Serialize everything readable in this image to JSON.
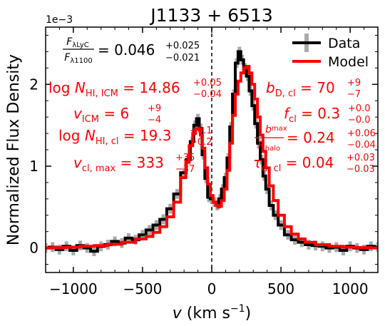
{
  "chart_data": {
    "type": "line",
    "title": "J1133 + 6513",
    "xlabel": "v (km s⁻¹)",
    "ylabel": "Normalized Flux Density",
    "y_multiplier": "1e−3",
    "xlim": [
      -1200,
      1200
    ],
    "ylim": [
      -0.3,
      2.7
    ],
    "x_ticks": [
      -1000,
      -500,
      0,
      500,
      1000
    ],
    "y_ticks": [
      0,
      1,
      2
    ],
    "x_tick_labels": [
      "−1000",
      "−500",
      "0",
      "500",
      "1000"
    ],
    "y_tick_labels": [
      "0",
      "1",
      "2"
    ],
    "legend": {
      "position": "top-right",
      "entries": [
        "Data",
        "Model"
      ]
    },
    "vline": {
      "x": 0,
      "style": "dashed"
    },
    "series": [
      {
        "name": "Data",
        "color": "#000000",
        "error_color": "#aaaaaa",
        "x": [
          -1200,
          -1150,
          -1100,
          -1050,
          -1000,
          -950,
          -900,
          -850,
          -800,
          -750,
          -700,
          -650,
          -600,
          -550,
          -500,
          -450,
          -400,
          -350,
          -300,
          -250,
          -200,
          -170,
          -140,
          -120,
          -100,
          -80,
          -60,
          -40,
          -20,
          0,
          20,
          40,
          60,
          80,
          100,
          120,
          140,
          160,
          180,
          200,
          220,
          240,
          260,
          280,
          300,
          320,
          340,
          360,
          380,
          400,
          430,
          460,
          500,
          550,
          600,
          650,
          700,
          750,
          800,
          850,
          900,
          950,
          1000,
          1050,
          1100,
          1150,
          1200
        ],
        "y": [
          0.0,
          0.01,
          -0.02,
          0.02,
          -0.03,
          0.03,
          0.0,
          -0.04,
          0.02,
          0.04,
          0.08,
          0.06,
          0.12,
          0.1,
          0.16,
          0.22,
          0.28,
          0.35,
          0.48,
          0.66,
          0.92,
          1.08,
          1.3,
          1.5,
          1.58,
          1.46,
          1.14,
          0.85,
          0.62,
          0.6,
          0.56,
          0.52,
          0.6,
          0.72,
          0.86,
          1.1,
          1.48,
          1.88,
          2.26,
          2.4,
          2.3,
          2.2,
          2.1,
          1.92,
          1.74,
          1.52,
          1.28,
          1.08,
          0.88,
          0.72,
          0.52,
          0.4,
          0.28,
          0.16,
          0.1,
          0.07,
          0.04,
          0.03,
          0.02,
          0.0,
          0.01,
          -0.03,
          0.02,
          0.0,
          -0.02,
          0.02,
          0.01
        ],
        "error": 0.06
      },
      {
        "name": "Model",
        "color": "#ff0000",
        "x": [
          -1200,
          -1100,
          -1000,
          -900,
          -800,
          -700,
          -600,
          -500,
          -450,
          -400,
          -350,
          -300,
          -250,
          -200,
          -175,
          -150,
          -125,
          -110,
          -100,
          -90,
          -75,
          -60,
          -40,
          -20,
          0,
          20,
          40,
          50,
          60,
          80,
          100,
          120,
          140,
          160,
          180,
          200,
          220,
          240,
          260,
          280,
          300,
          320,
          340,
          360,
          380,
          400,
          430,
          460,
          500,
          550,
          600,
          650,
          700,
          800,
          900,
          1000,
          1100,
          1200
        ],
        "y": [
          0.0,
          0.005,
          0.01,
          0.02,
          0.03,
          0.045,
          0.07,
          0.11,
          0.14,
          0.19,
          0.26,
          0.38,
          0.56,
          0.86,
          1.05,
          1.25,
          1.4,
          1.45,
          1.46,
          1.45,
          1.38,
          1.22,
          0.98,
          0.78,
          0.64,
          0.56,
          0.52,
          0.5,
          0.51,
          0.58,
          0.72,
          0.95,
          1.28,
          1.62,
          1.88,
          2.04,
          2.14,
          2.2,
          2.22,
          2.14,
          2.0,
          1.82,
          1.6,
          1.38,
          1.18,
          0.98,
          0.76,
          0.58,
          0.4,
          0.26,
          0.17,
          0.11,
          0.07,
          0.04,
          0.02,
          0.01,
          0.005,
          0.0
        ]
      }
    ],
    "annotations": {
      "lyc_ratio": {
        "num": "F",
        "num_sub": "λLyC",
        "den": "F",
        "den_sub": "λ1100",
        "eq": "= 0.046",
        "sup": "+0.025",
        "sub": "−0.021"
      },
      "left": [
        {
          "pre": "log ",
          "var": "N",
          "sub": "HI, ICM",
          "eq": " = 14.86",
          "err_up": "+0.05",
          "err_down": "−0.04"
        },
        {
          "pre": "",
          "var": "v",
          "sub": "ICM",
          "eq": " = 6",
          "err_up": "+9",
          "err_down": "−4"
        },
        {
          "pre": "log ",
          "var": "N",
          "sub": "HI, cl",
          "eq": " = 19.3",
          "err_up": "+0.1",
          "err_down": "−0.2"
        },
        {
          "pre": "",
          "var": "v",
          "sub": "cl, max",
          "eq": " = 333",
          "err_up": "+35",
          "err_down": "−37"
        }
      ],
      "right": [
        {
          "var": "b",
          "sub": "D, cl",
          "eq": " = 70",
          "err_up": "+9",
          "err_down": "−7"
        },
        {
          "var": "f",
          "sub": "cl",
          "eq": " = 0.3",
          "err_up": "+0.0",
          "err_down": "−0.0"
        },
        {
          "frac_num": "b",
          "frac_num_sub": "max",
          "frac_den": "R",
          "frac_den_sub": "halo",
          "eq": "= 0.24",
          "err_up": "+0.06",
          "err_down": "−0.04"
        },
        {
          "var": "τ",
          "sub": "d, cl",
          "eq": " = 0.04",
          "err_up": "+0.03",
          "err_down": "−0.03"
        }
      ]
    }
  }
}
